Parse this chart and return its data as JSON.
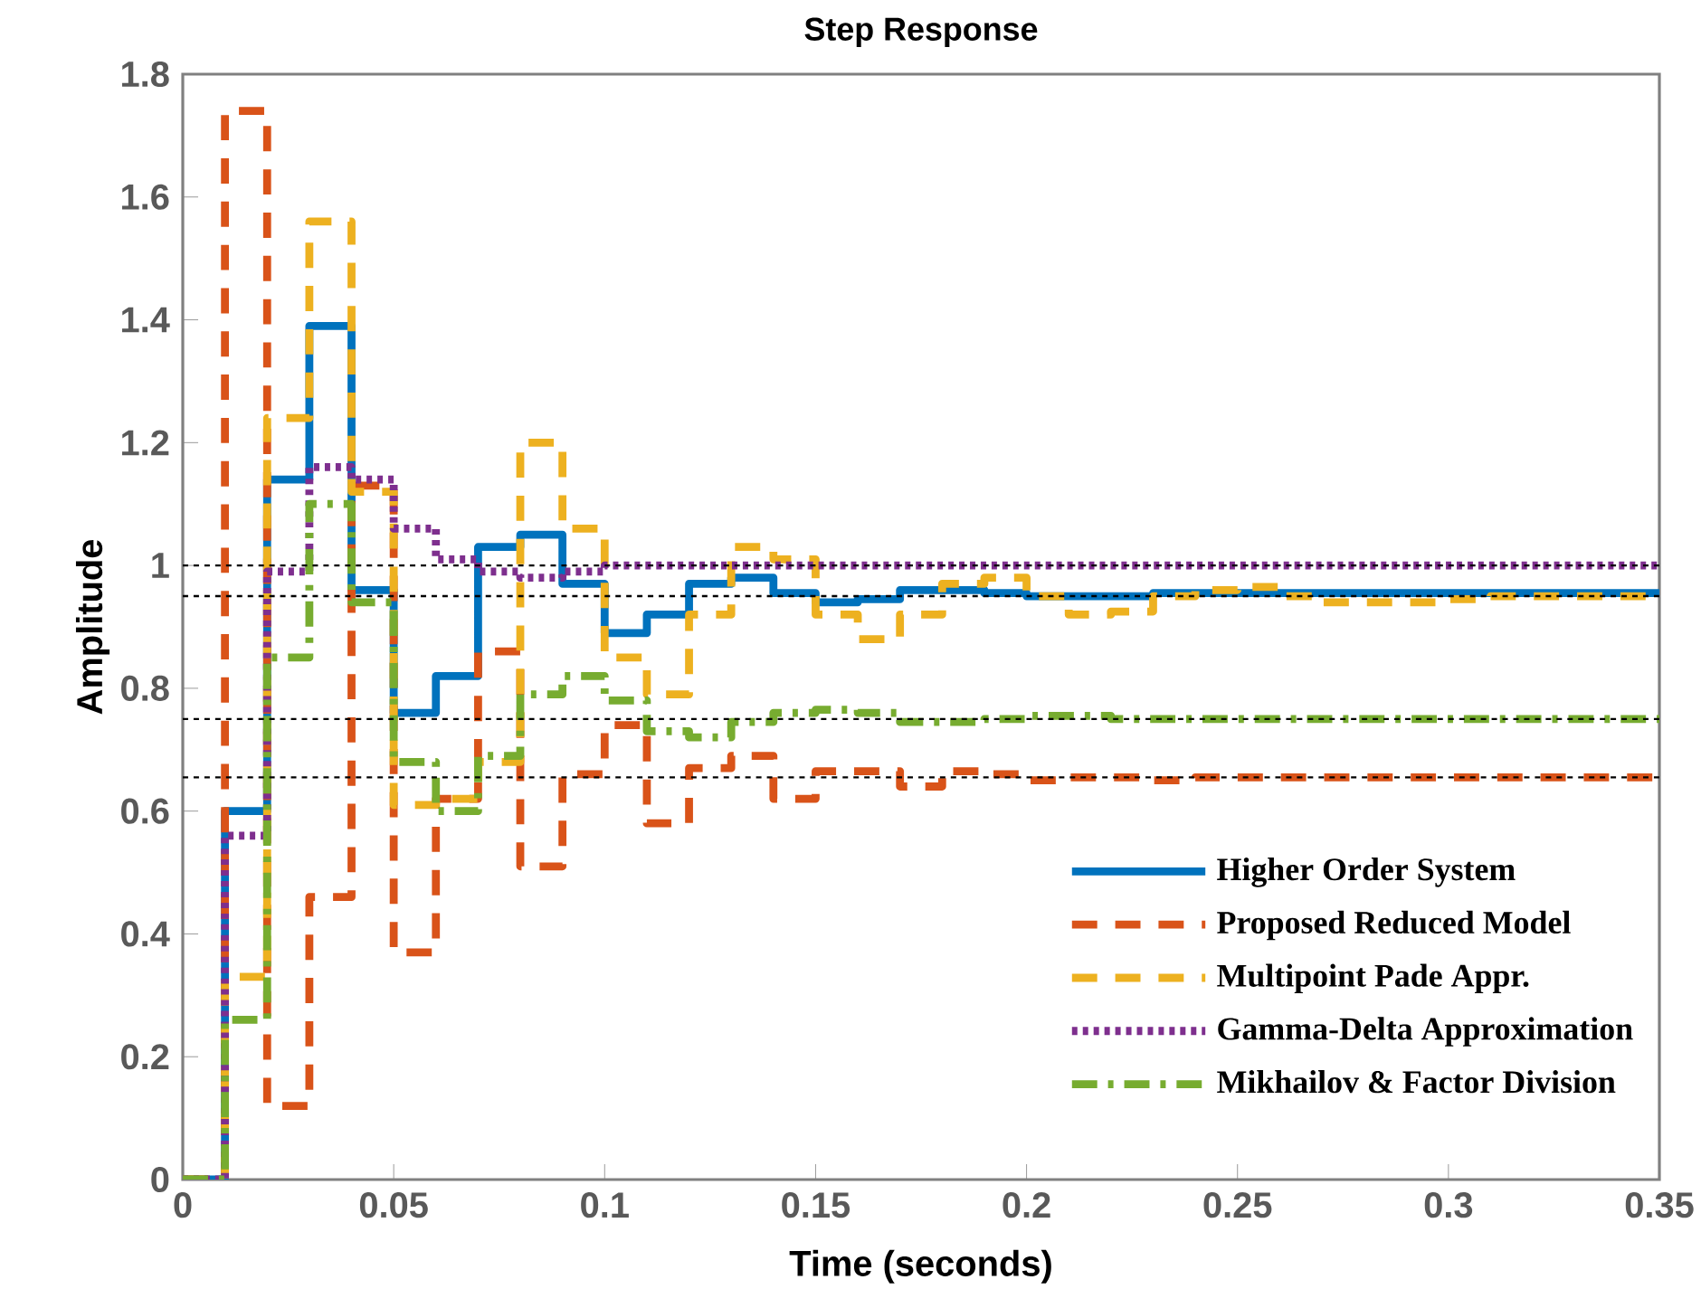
{
  "chart_data": {
    "type": "step",
    "title": "Step Response",
    "xlabel": "Time (seconds)",
    "ylabel": "Amplitude",
    "x": [
      0,
      0.01,
      0.02,
      0.03,
      0.04,
      0.05,
      0.06,
      0.07,
      0.08,
      0.09,
      0.1,
      0.11,
      0.12,
      0.13,
      0.14,
      0.15,
      0.16,
      0.17,
      0.18,
      0.19,
      0.2,
      0.21,
      0.22,
      0.23,
      0.24,
      0.25,
      0.26,
      0.27,
      0.28,
      0.29,
      0.3,
      0.31,
      0.32,
      0.33,
      0.34,
      0.35
    ],
    "series": [
      {
        "name": "Higher Order System",
        "color": "#0072bd",
        "line_style": "solid",
        "values": [
          0,
          0.6,
          1.14,
          1.39,
          0.96,
          0.76,
          0.82,
          1.03,
          1.05,
          0.97,
          0.89,
          0.92,
          0.97,
          0.98,
          0.955,
          0.94,
          0.945,
          0.96,
          0.96,
          0.955,
          0.95,
          0.95,
          0.95,
          0.955,
          0.955,
          0.955,
          0.955,
          0.955,
          0.955,
          0.955,
          0.955,
          0.955,
          0.955,
          0.955,
          0.955,
          0.955
        ]
      },
      {
        "name": "Proposed Reduced Model",
        "color": "#d95319",
        "line_style": "dashed",
        "values": [
          0,
          1.74,
          0.12,
          0.46,
          1.13,
          0.37,
          0.62,
          0.86,
          0.51,
          0.66,
          0.74,
          0.58,
          0.67,
          0.69,
          0.62,
          0.665,
          0.665,
          0.64,
          0.665,
          0.66,
          0.65,
          0.655,
          0.655,
          0.65,
          0.655,
          0.655,
          0.655,
          0.655,
          0.655,
          0.655,
          0.655,
          0.655,
          0.655,
          0.655,
          0.655,
          0.655
        ]
      },
      {
        "name": "Multipoint Pade Appr.",
        "color": "#edb120",
        "line_style": "dashed",
        "values": [
          0,
          0.33,
          1.24,
          1.56,
          1.12,
          0.61,
          0.62,
          0.68,
          1.2,
          1.06,
          0.85,
          0.79,
          0.92,
          1.03,
          1.01,
          0.92,
          0.88,
          0.92,
          0.97,
          0.98,
          0.95,
          0.92,
          0.925,
          0.95,
          0.96,
          0.965,
          0.95,
          0.94,
          0.94,
          0.94,
          0.945,
          0.95,
          0.95,
          0.95,
          0.95,
          0.95
        ]
      },
      {
        "name": "Gamma-Delta Approximation",
        "color": "#7e2f8e",
        "line_style": "dotted",
        "values": [
          0,
          0.56,
          0.99,
          1.16,
          1.14,
          1.06,
          1.01,
          0.99,
          0.98,
          0.99,
          1.0,
          1.0,
          1.0,
          1.0,
          1.0,
          1.0,
          1.0,
          1.0,
          1.0,
          1.0,
          1.0,
          1.0,
          1.0,
          1.0,
          1.0,
          1.0,
          1.0,
          1.0,
          1.0,
          1.0,
          1.0,
          1.0,
          1.0,
          1.0,
          1.0,
          1.0
        ]
      },
      {
        "name": "Mikhailov & Factor Division",
        "color": "#77ac30",
        "line_style": "dashdot",
        "values": [
          0,
          0.26,
          0.85,
          1.1,
          0.94,
          0.68,
          0.6,
          0.69,
          0.79,
          0.82,
          0.78,
          0.73,
          0.72,
          0.745,
          0.76,
          0.765,
          0.76,
          0.745,
          0.745,
          0.75,
          0.755,
          0.755,
          0.75,
          0.75,
          0.75,
          0.75,
          0.75,
          0.75,
          0.75,
          0.75,
          0.75,
          0.75,
          0.75,
          0.75,
          0.75,
          0.75
        ]
      }
    ],
    "xlim": [
      0,
      0.35
    ],
    "xticks": [
      0,
      0.05,
      0.1,
      0.15,
      0.2,
      0.25,
      0.3,
      0.35
    ],
    "ylim": [
      0,
      1.8
    ],
    "yticks": [
      0,
      0.2,
      0.4,
      0.6,
      0.8,
      1,
      1.2,
      1.4,
      1.6,
      1.8
    ],
    "ref_lines": [
      {
        "axis": "y",
        "value": 1,
        "color": "#000000",
        "line_style": "dotted"
      },
      {
        "axis": "y",
        "value": 0.95,
        "color": "#000000",
        "line_style": "dotted"
      },
      {
        "axis": "y",
        "value": 0.75,
        "color": "#000000",
        "line_style": "dotted"
      },
      {
        "axis": "y",
        "value": 0.655,
        "color": "#000000",
        "line_style": "dotted"
      }
    ],
    "grid": false,
    "legend": "bottom right",
    "marker": "none"
  }
}
